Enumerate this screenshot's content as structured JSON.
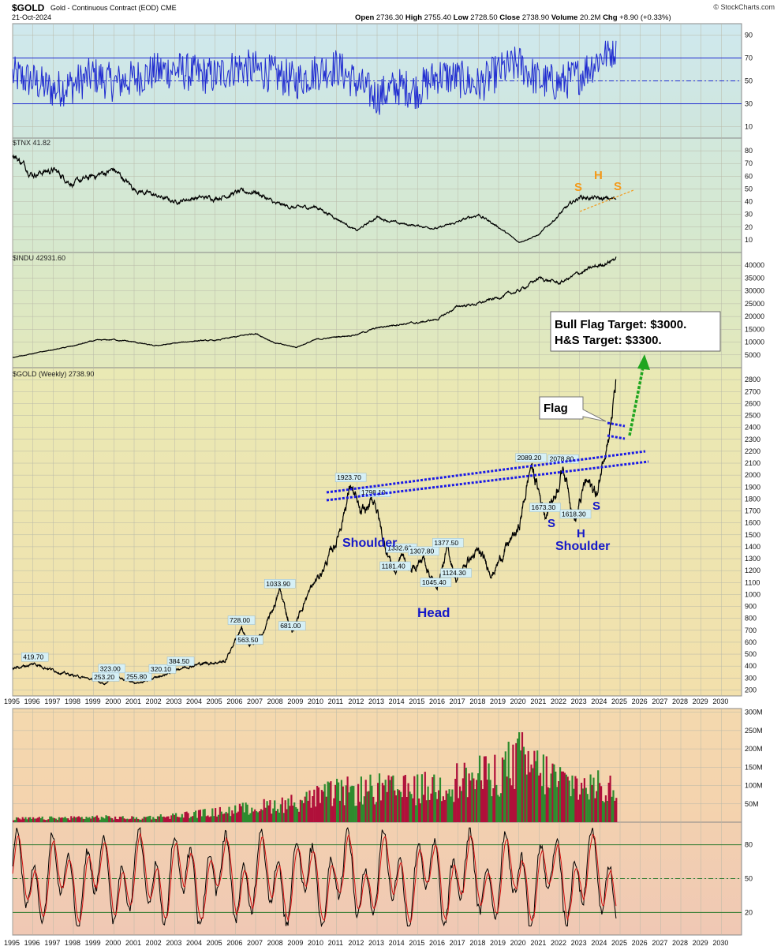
{
  "header": {
    "symbol": "$GOLD",
    "description": "Gold - Continuous Contract (EOD)",
    "exchange": "CME",
    "date": "21-Oct-2024",
    "open_label": "Open",
    "open": "2736.30",
    "high_label": "High",
    "high": "2755.40",
    "low_label": "Low",
    "low": "2728.50",
    "close_label": "Close",
    "close": "2738.90",
    "volume_label": "Volume",
    "volume": "20.2M",
    "chg_label": "Chg",
    "chg": "+8.90 (+0.33%)",
    "watermark": "© StockCharts.com"
  },
  "colors": {
    "price_line": "#000000",
    "rsi_line": "#1f2bd0",
    "channel_dash": "#1a1ae6",
    "pattern_text": "#1518c8",
    "hs_text": "#f39a1b",
    "target_arrow": "#1fa51f",
    "volume_up": "#2e8b2e",
    "volume_down": "#b0103a",
    "stoch_line": "#000000",
    "stoch_signal": "#d01010"
  },
  "chart_data": [
    {
      "panel": "rsi",
      "type": "line",
      "title": "",
      "ylim": [
        0,
        100
      ],
      "y_ticks": [
        "90",
        "70",
        "50",
        "30",
        "10"
      ],
      "reference_lines": [
        70,
        50,
        30
      ],
      "x": [
        1995,
        1996,
        1997,
        1998,
        1999,
        2000,
        2001,
        2002,
        2003,
        2004,
        2005,
        2006,
        2007,
        2008,
        2009,
        2010,
        2011,
        2012,
        2013,
        2014,
        2015,
        2016,
        2017,
        2018,
        2019,
        2020,
        2021,
        2022,
        2023,
        2024,
        2024.8
      ],
      "values": [
        55,
        50,
        42,
        47,
        55,
        48,
        52,
        58,
        60,
        56,
        54,
        62,
        60,
        55,
        50,
        58,
        62,
        48,
        36,
        45,
        42,
        55,
        52,
        46,
        58,
        65,
        50,
        48,
        55,
        70,
        80
      ]
    },
    {
      "panel": "tnx",
      "type": "line",
      "title": "$TNX 41.82",
      "ylim": [
        0,
        90
      ],
      "y_ticks": [
        "80",
        "70",
        "60",
        "50",
        "40",
        "30",
        "20",
        "10"
      ],
      "x": [
        1995,
        1996,
        1997,
        1998,
        1999,
        2000,
        2001,
        2002,
        2003,
        2004,
        2005,
        2006,
        2007,
        2008,
        2009,
        2010,
        2011,
        2012,
        2013,
        2014,
        2015,
        2016,
        2017,
        2018,
        2019,
        2020,
        2021,
        2022,
        2023,
        2024,
        2024.8
      ],
      "values": [
        78,
        62,
        65,
        54,
        60,
        65,
        50,
        45,
        40,
        43,
        43,
        47,
        48,
        38,
        35,
        36,
        27,
        17,
        28,
        23,
        21,
        19,
        24,
        30,
        20,
        8,
        14,
        30,
        44,
        42,
        42
      ]
    },
    {
      "panel": "indu",
      "type": "line",
      "title": "$INDU 42931.60",
      "ylim": [
        0,
        45000
      ],
      "y_ticks": [
        "40000",
        "35000",
        "30000",
        "25000",
        "20000",
        "15000",
        "10000",
        "5000"
      ],
      "x": [
        1995,
        1996,
        1997,
        1998,
        1999,
        2000,
        2001,
        2002,
        2003,
        2004,
        2005,
        2006,
        2007,
        2008,
        2009,
        2010,
        2011,
        2012,
        2013,
        2014,
        2015,
        2016,
        2017,
        2018,
        2019,
        2020,
        2021,
        2022,
        2023,
        2024,
        2024.8
      ],
      "values": [
        4000,
        5500,
        7000,
        8500,
        10500,
        11000,
        10000,
        8500,
        9500,
        10500,
        10600,
        12000,
        13500,
        9500,
        8000,
        11000,
        12000,
        13000,
        15500,
        17000,
        17500,
        19000,
        24000,
        25000,
        27500,
        30000,
        35000,
        33000,
        37000,
        40000,
        42900
      ]
    },
    {
      "panel": "gold",
      "type": "line",
      "title": "$GOLD (Weekly) 2738.90",
      "ylim": [
        150,
        2900
      ],
      "y_ticks": [
        "2800",
        "2700",
        "2600",
        "2500",
        "2400",
        "2300",
        "2200",
        "2100",
        "2000",
        "1900",
        "1800",
        "1700",
        "1600",
        "1500",
        "1400",
        "1300",
        "1200",
        "1100",
        "1000",
        "900",
        "800",
        "700",
        "600",
        "500",
        "400",
        "300",
        "200"
      ],
      "x_labels": [
        "1995",
        "1996",
        "1997",
        "1998",
        "1999",
        "2000",
        "2001",
        "2002",
        "2003",
        "2004",
        "2005",
        "2006",
        "2007",
        "2008",
        "2009",
        "2010",
        "2011",
        "2012",
        "2013",
        "2014",
        "2015",
        "2016",
        "2017",
        "2018",
        "2019",
        "2020",
        "2021",
        "2022",
        "2023",
        "2024",
        "2025",
        "2026",
        "2027",
        "2028",
        "2029",
        "2030"
      ],
      "x": [
        1995.0,
        1996.1,
        1997.5,
        1998.6,
        1999.6,
        1999.9,
        2001.2,
        2002.4,
        2003.3,
        2004.3,
        2005.5,
        2006.3,
        2006.7,
        2007.4,
        2008.2,
        2008.8,
        2009.5,
        2010.3,
        2011.0,
        2011.7,
        2012.2,
        2012.9,
        2013.3,
        2013.9,
        2014.2,
        2014.7,
        2015.3,
        2015.9,
        2016.5,
        2016.9,
        2017.5,
        2018.0,
        2018.7,
        2019.4,
        2020.0,
        2020.6,
        2021.3,
        2021.8,
        2022.2,
        2022.8,
        2023.3,
        2023.9,
        2024.2,
        2024.5,
        2024.8
      ],
      "values": [
        380,
        419.7,
        340,
        300,
        253.2,
        323,
        255.8,
        320.1,
        384.5,
        420,
        440,
        728,
        563.5,
        680,
        1033.9,
        681,
        980,
        1200,
        1450,
        1923.7,
        1650,
        1798.1,
        1450,
        1181.4,
        1332.6,
        1200,
        1307.8,
        1045.4,
        1377.5,
        1124.3,
        1290,
        1350,
        1180,
        1400,
        1550,
        2089.2,
        1673.3,
        1850,
        2078.8,
        1618.3,
        1950,
        1840,
        2200,
        2400,
        2738.9
      ],
      "data_labels": [
        {
          "text": "419.70",
          "x": 1996.1,
          "y": 419.7
        },
        {
          "text": "253.20",
          "x": 1999.6,
          "y": 253.2
        },
        {
          "text": "323.00",
          "x": 1999.9,
          "y": 323
        },
        {
          "text": "255.80",
          "x": 2001.2,
          "y": 255.8
        },
        {
          "text": "320.10",
          "x": 2002.4,
          "y": 320.1
        },
        {
          "text": "384.50",
          "x": 2003.3,
          "y": 384.5
        },
        {
          "text": "728.00",
          "x": 2006.3,
          "y": 728
        },
        {
          "text": "563.50",
          "x": 2006.7,
          "y": 563.5
        },
        {
          "text": "1033.90",
          "x": 2008.2,
          "y": 1033.9
        },
        {
          "text": "681.00",
          "x": 2008.8,
          "y": 681
        },
        {
          "text": "1923.70",
          "x": 2011.7,
          "y": 1923.7
        },
        {
          "text": "1798.10",
          "x": 2012.9,
          "y": 1798.1
        },
        {
          "text": "1181.40",
          "x": 2013.9,
          "y": 1181.4
        },
        {
          "text": "1332.60",
          "x": 2014.2,
          "y": 1332.6
        },
        {
          "text": "1307.80",
          "x": 2015.3,
          "y": 1307.8
        },
        {
          "text": "1045.40",
          "x": 2015.9,
          "y": 1045.4
        },
        {
          "text": "1377.50",
          "x": 2016.5,
          "y": 1377.5
        },
        {
          "text": "1124.30",
          "x": 2016.9,
          "y": 1124.3
        },
        {
          "text": "2089.20",
          "x": 2020.6,
          "y": 2089.2
        },
        {
          "text": "1673.30",
          "x": 2021.3,
          "y": 1673.3
        },
        {
          "text": "2078.80",
          "x": 2022.2,
          "y": 2078.8
        },
        {
          "text": "1618.30",
          "x": 2022.8,
          "y": 1618.3
        }
      ],
      "annotations": {
        "left_shoulder": "Shoulder",
        "head": "Head",
        "inverse_s1": "S",
        "inverse_h": "H",
        "inverse_s2": "S",
        "right_shoulder": "Shoulder",
        "flag": "Flag",
        "target_line1": "Bull Flag Target: $3000.",
        "target_line2": "H&S Target: $3300.",
        "tnx_s1": "S",
        "tnx_h": "H",
        "tnx_s2": "S"
      }
    },
    {
      "panel": "volume",
      "type": "bar",
      "y_ticks": [
        "300M",
        "250M",
        "200M",
        "150M",
        "100M",
        "50M"
      ],
      "ylim": [
        0,
        310
      ],
      "x": [
        1995,
        1997,
        1999,
        2001,
        2003,
        2005,
        2007,
        2009,
        2010,
        2011,
        2012,
        2013,
        2014,
        2015,
        2016,
        2017,
        2018,
        2019,
        2020,
        2021,
        2022,
        2023,
        2024,
        2024.8
      ],
      "values": [
        10,
        12,
        15,
        12,
        20,
        30,
        45,
        60,
        75,
        90,
        95,
        100,
        95,
        100,
        110,
        125,
        135,
        150,
        190,
        155,
        125,
        110,
        105,
        90
      ]
    },
    {
      "panel": "stochastic",
      "type": "line",
      "y_ticks": [
        "80",
        "50",
        "20"
      ],
      "ylim": [
        0,
        100
      ],
      "reference_lines": [
        80,
        50,
        20
      ]
    }
  ]
}
